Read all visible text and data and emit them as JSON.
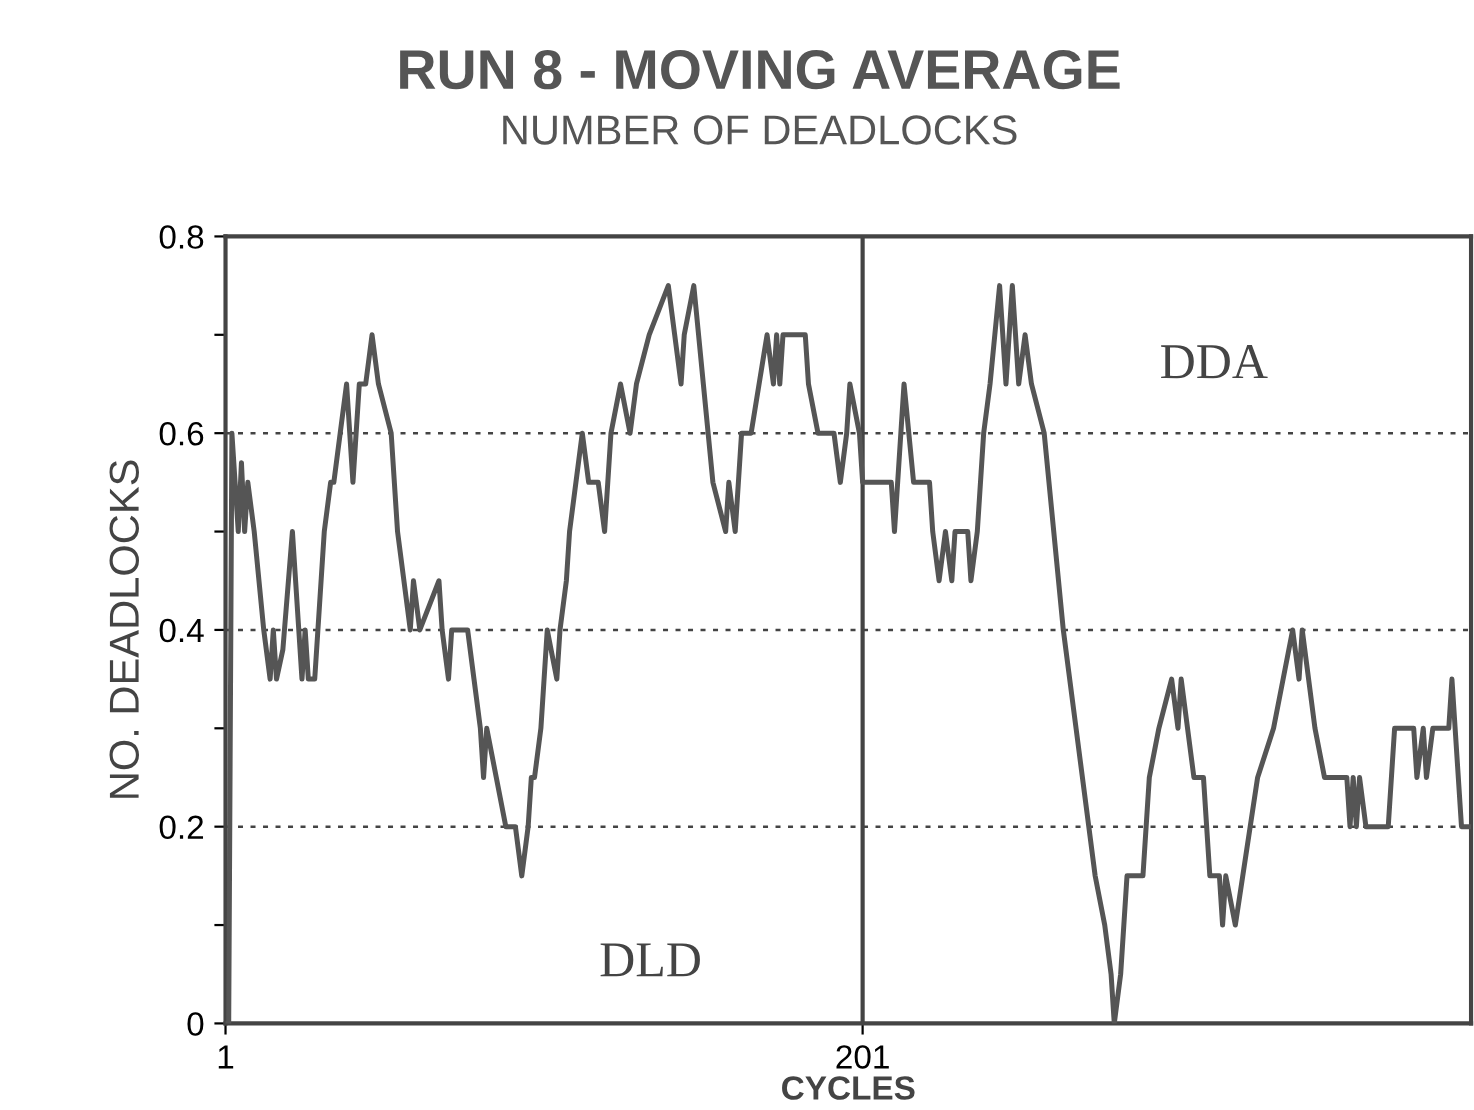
{
  "chart_data": {
    "type": "line",
    "title": "RUN 8 - MOVING AVERAGE",
    "subtitle": "NUMBER OF DEADLOCKS",
    "xlabel": "CYCLES",
    "ylabel": "NO. DEADLOCKS",
    "series": [
      {
        "color": "#555555",
        "x": [
          1,
          2,
          3,
          5,
          6,
          7,
          8,
          10,
          13,
          15,
          16,
          17,
          19,
          22,
          25,
          26,
          27,
          29,
          32,
          34,
          35,
          37,
          39,
          41,
          43,
          45,
          47,
          49,
          53,
          55,
          59,
          60,
          62,
          68,
          69,
          71,
          72,
          77,
          79,
          81,
          82,
          83,
          86,
          89,
          92,
          94,
          96,
          97,
          98,
          100,
          101,
          102,
          105,
          106,
          108,
          109,
          113,
          115,
          118,
          120,
          121,
          122,
          125,
          128,
          130,
          134,
          140,
          142,
          144,
          145,
          148,
          151,
          154,
          158,
          159,
          161,
          163,
          166,
          171,
          173,
          174,
          175,
          176,
          183,
          184,
          187,
          192,
          194,
          196,
          197,
          200,
          201,
          210,
          211,
          214,
          217,
          222,
          223,
          225,
          227,
          229,
          230,
          234,
          235,
          237,
          239,
          241,
          244,
          246,
          248,
          250,
          252,
          254,
          258,
          264,
          268,
          272,
          274,
          277,
          279,
          280,
          282,
          284,
          289,
          291,
          294,
          298,
          300,
          301,
          305,
          308,
          310,
          313,
          314,
          315,
          318,
          325,
          330,
          333,
          336,
          338,
          339,
          343,
          346,
          353,
          354,
          355,
          356,
          357,
          359,
          366,
          368,
          374,
          375,
          377,
          378,
          380,
          385,
          386,
          389,
          392
        ],
        "values": [
          0.0,
          0.0,
          0.6,
          0.5,
          0.57,
          0.5,
          0.55,
          0.5,
          0.4,
          0.35,
          0.4,
          0.35,
          0.38,
          0.5,
          0.35,
          0.4,
          0.35,
          0.35,
          0.5,
          0.55,
          0.55,
          0.6,
          0.65,
          0.55,
          0.65,
          0.65,
          0.7,
          0.65,
          0.6,
          0.5,
          0.4,
          0.45,
          0.4,
          0.45,
          0.4,
          0.35,
          0.4,
          0.4,
          0.35,
          0.3,
          0.25,
          0.3,
          0.25,
          0.2,
          0.2,
          0.15,
          0.2,
          0.25,
          0.25,
          0.3,
          0.35,
          0.4,
          0.35,
          0.4,
          0.45,
          0.5,
          0.6,
          0.55,
          0.55,
          0.5,
          0.55,
          0.6,
          0.65,
          0.6,
          0.65,
          0.7,
          0.75,
          0.7,
          0.65,
          0.7,
          0.75,
          0.65,
          0.55,
          0.5,
          0.55,
          0.5,
          0.6,
          0.6,
          0.7,
          0.65,
          0.7,
          0.65,
          0.7,
          0.7,
          0.65,
          0.6,
          0.6,
          0.55,
          0.6,
          0.65,
          0.6,
          0.55,
          0.55,
          0.5,
          0.65,
          0.55,
          0.55,
          0.5,
          0.45,
          0.5,
          0.45,
          0.5,
          0.5,
          0.45,
          0.5,
          0.6,
          0.65,
          0.75,
          0.65,
          0.75,
          0.65,
          0.7,
          0.65,
          0.6,
          0.4,
          0.3,
          0.2,
          0.15,
          0.1,
          0.05,
          0.0,
          0.05,
          0.15,
          0.15,
          0.25,
          0.3,
          0.35,
          0.3,
          0.35,
          0.25,
          0.25,
          0.15,
          0.15,
          0.1,
          0.15,
          0.1,
          0.25,
          0.3,
          0.35,
          0.4,
          0.35,
          0.4,
          0.3,
          0.25,
          0.25,
          0.2,
          0.25,
          0.2,
          0.25,
          0.2,
          0.2,
          0.3,
          0.3,
          0.25,
          0.3,
          0.25,
          0.3,
          0.3,
          0.35,
          0.2,
          0.2
        ]
      }
    ],
    "xlim": [
      1,
      392
    ],
    "xticks": [
      1,
      201
    ],
    "ylim": [
      0,
      0.8
    ],
    "yticks": [
      0,
      {
        "value": 0.1,
        "label": null
      },
      0.2,
      {
        "value": 0.3,
        "label": null
      },
      0.4,
      {
        "value": 0.5,
        "label": null
      },
      0.6,
      {
        "value": 0.7,
        "label": null
      },
      0.8
    ],
    "grid": "y",
    "line_style": "solid",
    "marker": "none",
    "ref_lines": [
      {
        "axis": "x",
        "value": 201,
        "color": "#444444",
        "line_style": "solid"
      }
    ],
    "annotations": [
      "DLD",
      "DDA"
    ]
  }
}
